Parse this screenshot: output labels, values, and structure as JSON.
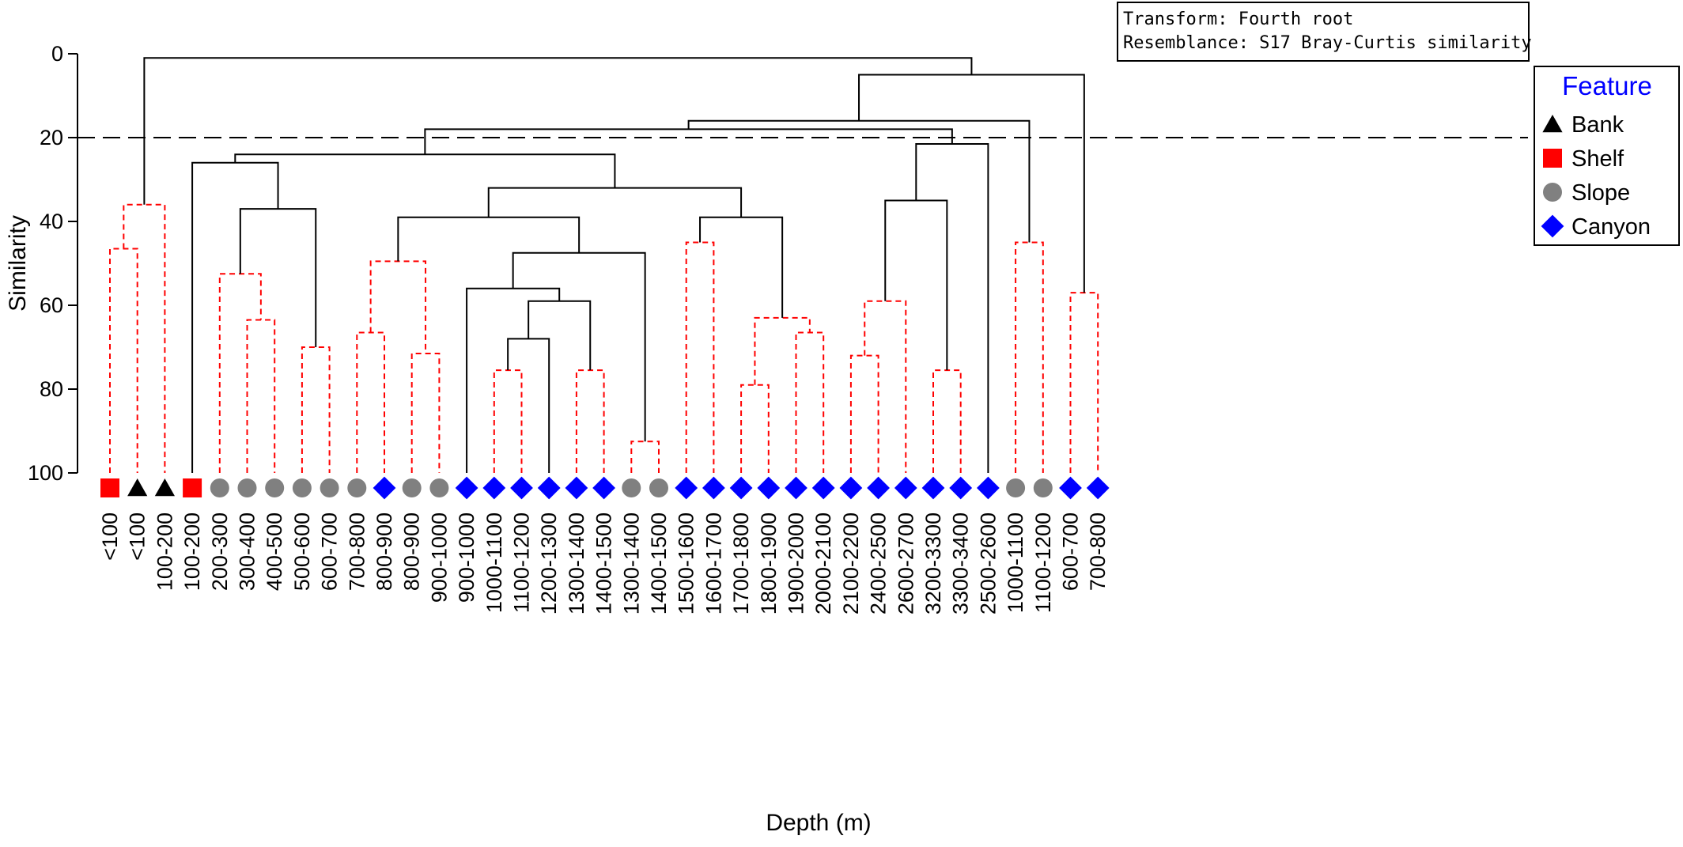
{
  "chart_data": {
    "type": "dendrogram",
    "xlabel": "Depth (m)",
    "ylabel": "Similarity",
    "ylim": [
      0,
      100
    ],
    "y_inverted": true,
    "yticks": [
      0,
      20,
      40,
      60,
      80,
      100
    ],
    "cut_line_similarity": 20,
    "info_box": [
      "Transform: Fourth root",
      "Resemblance: S17 Bray-Curtis similarity"
    ],
    "legend": {
      "title": "Feature",
      "placement": "top-right",
      "items": [
        {
          "label": "Bank",
          "shape": "triangle",
          "color": "#000000"
        },
        {
          "label": "Shelf",
          "shape": "square",
          "color": "#ff0000"
        },
        {
          "label": "Slope",
          "shape": "circle",
          "color": "#808080"
        },
        {
          "label": "Canyon",
          "shape": "diamond",
          "color": "#0000ff"
        }
      ]
    },
    "colors": {
      "solid_branch": "#000000",
      "dashed_branch": "#ff0000",
      "cut_line": "#000000"
    },
    "leaves": [
      {
        "label": "<100",
        "feature": "Shelf"
      },
      {
        "label": "<100",
        "feature": "Bank"
      },
      {
        "label": "100-200",
        "feature": "Bank"
      },
      {
        "label": "100-200",
        "feature": "Shelf"
      },
      {
        "label": "200-300",
        "feature": "Slope"
      },
      {
        "label": "300-400",
        "feature": "Slope"
      },
      {
        "label": "400-500",
        "feature": "Slope"
      },
      {
        "label": "500-600",
        "feature": "Slope"
      },
      {
        "label": "600-700",
        "feature": "Slope"
      },
      {
        "label": "700-800",
        "feature": "Slope"
      },
      {
        "label": "800-900",
        "feature": "Canyon"
      },
      {
        "label": "800-900",
        "feature": "Slope"
      },
      {
        "label": "900-1000",
        "feature": "Slope"
      },
      {
        "label": "900-1000",
        "feature": "Canyon"
      },
      {
        "label": "1000-1100",
        "feature": "Canyon"
      },
      {
        "label": "1100-1200",
        "feature": "Canyon"
      },
      {
        "label": "1200-1300",
        "feature": "Canyon"
      },
      {
        "label": "1300-1400",
        "feature": "Canyon"
      },
      {
        "label": "1400-1500",
        "feature": "Canyon"
      },
      {
        "label": "1300-1400",
        "feature": "Slope"
      },
      {
        "label": "1400-1500",
        "feature": "Slope"
      },
      {
        "label": "1500-1600",
        "feature": "Canyon"
      },
      {
        "label": "1600-1700",
        "feature": "Canyon"
      },
      {
        "label": "1700-1800",
        "feature": "Canyon"
      },
      {
        "label": "1800-1900",
        "feature": "Canyon"
      },
      {
        "label": "1900-2000",
        "feature": "Canyon"
      },
      {
        "label": "2000-2100",
        "feature": "Canyon"
      },
      {
        "label": "2100-2200",
        "feature": "Canyon"
      },
      {
        "label": "2400-2500",
        "feature": "Canyon"
      },
      {
        "label": "2600-2700",
        "feature": "Canyon"
      },
      {
        "label": "3200-3300",
        "feature": "Canyon"
      },
      {
        "label": "3300-3400",
        "feature": "Canyon"
      },
      {
        "label": "2500-2600",
        "feature": "Canyon"
      },
      {
        "label": "1000-1100",
        "feature": "Slope"
      },
      {
        "label": "1100-1200",
        "feature": "Slope"
      },
      {
        "label": "600-700",
        "feature": "Canyon"
      },
      {
        "label": "700-800",
        "feature": "Canyon"
      }
    ],
    "merges": [
      {
        "id": "m1",
        "left": 0,
        "right": 1,
        "similarity": 46.5,
        "dashed": true
      },
      {
        "id": "m2",
        "left": "m1",
        "right": 2,
        "similarity": 36,
        "dashed": true
      },
      {
        "id": "m3",
        "left": 5,
        "right": 6,
        "similarity": 63.5,
        "dashed": true
      },
      {
        "id": "m4",
        "left": 4,
        "right": "m3",
        "similarity": 52.5,
        "dashed": true
      },
      {
        "id": "m5",
        "left": 7,
        "right": 8,
        "similarity": 70,
        "dashed": true
      },
      {
        "id": "m6",
        "left": "m4",
        "right": "m5",
        "similarity": 37,
        "dashed": false
      },
      {
        "id": "m7",
        "left": 3,
        "right": "m6",
        "similarity": 26,
        "dashed": false
      },
      {
        "id": "m8",
        "left": 9,
        "right": 10,
        "similarity": 66.5,
        "dashed": true
      },
      {
        "id": "m9",
        "left": 11,
        "right": 12,
        "similarity": 71.5,
        "dashed": true
      },
      {
        "id": "m10",
        "left": "m8",
        "right": "m9",
        "similarity": 49.5,
        "dashed": true
      },
      {
        "id": "m11",
        "left": 14,
        "right": 15,
        "similarity": 75.5,
        "dashed": true
      },
      {
        "id": "m12",
        "left": "m11",
        "right": 16,
        "similarity": 68,
        "dashed": false
      },
      {
        "id": "m13",
        "left": 17,
        "right": 18,
        "similarity": 75.5,
        "dashed": true
      },
      {
        "id": "m14",
        "left": "m12",
        "right": "m13",
        "similarity": 59,
        "dashed": false
      },
      {
        "id": "m15",
        "left": 13,
        "right": "m14",
        "similarity": 56,
        "dashed": false
      },
      {
        "id": "m16",
        "left": 19,
        "right": 20,
        "similarity": 92.5,
        "dashed": true
      },
      {
        "id": "m17",
        "left": "m15",
        "right": "m16",
        "similarity": 47.5,
        "dashed": false
      },
      {
        "id": "m18",
        "left": "m10",
        "right": "m17",
        "similarity": 39,
        "dashed": false
      },
      {
        "id": "m19",
        "left": 21,
        "right": 22,
        "similarity": 45,
        "dashed": true
      },
      {
        "id": "m20",
        "left": 23,
        "right": 24,
        "similarity": 79,
        "dashed": true
      },
      {
        "id": "m21",
        "left": 25,
        "right": 26,
        "similarity": 66.5,
        "dashed": true
      },
      {
        "id": "m22",
        "left": "m20",
        "right": "m21",
        "similarity": 63,
        "dashed": true
      },
      {
        "id": "m23",
        "left": "m19",
        "right": "m22",
        "similarity": 39,
        "dashed": false
      },
      {
        "id": "m24",
        "left": "m18",
        "right": "m23",
        "similarity": 32,
        "dashed": false
      },
      {
        "id": "m25",
        "left": "m7",
        "right": "m24",
        "similarity": 24,
        "dashed": false
      },
      {
        "id": "m26",
        "left": 27,
        "right": 28,
        "similarity": 72,
        "dashed": true
      },
      {
        "id": "m27",
        "left": "m26",
        "right": 29,
        "similarity": 59,
        "dashed": true
      },
      {
        "id": "m28",
        "left": 30,
        "right": 31,
        "similarity": 75.5,
        "dashed": true
      },
      {
        "id": "m29",
        "left": "m27",
        "right": "m28",
        "similarity": 35,
        "dashed": false
      },
      {
        "id": "m30",
        "left": "m29",
        "right": 32,
        "similarity": 21.5,
        "dashed": false
      },
      {
        "id": "m31",
        "left": "m25",
        "right": "m30",
        "similarity": 18,
        "dashed": false
      },
      {
        "id": "m32",
        "left": 33,
        "right": 34,
        "similarity": 45,
        "dashed": true
      },
      {
        "id": "m33",
        "left": "m31",
        "right": "m32",
        "similarity": 16,
        "dashed": false
      },
      {
        "id": "m34",
        "left": 35,
        "right": 36,
        "similarity": 57,
        "dashed": true
      },
      {
        "id": "m35",
        "left": "m33",
        "right": "m34",
        "similarity": 5,
        "dashed": false
      },
      {
        "id": "m36",
        "left": "m2",
        "right": "m35",
        "similarity": 1,
        "dashed": false
      }
    ]
  }
}
